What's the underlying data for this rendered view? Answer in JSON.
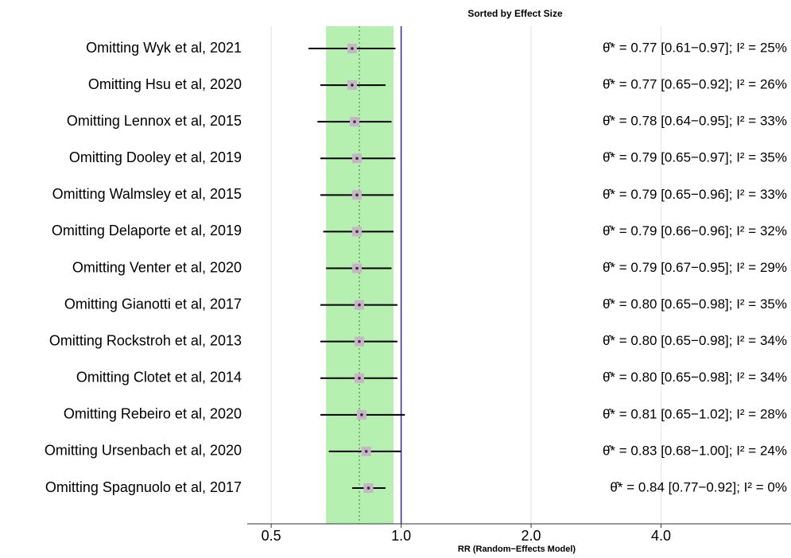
{
  "chart_data": {
    "type": "forest",
    "title": "Sorted by Effect Size",
    "xlabel": "RR (Random−Effects Model)",
    "categories": [
      "Omitting Wyk et al, 2021",
      "Omitting Hsu et al, 2020",
      "Omitting Lennox et al, 2015",
      "Omitting Dooley et al, 2019",
      "Omitting Walmsley et al, 2015",
      "Omitting Delaporte et al, 2019",
      "Omitting Venter et al, 2020",
      "Omitting Gianotti et al, 2017",
      "Omitting Rockstroh et al, 2013",
      "Omitting Clotet et al, 2014",
      "Omitting Rebeiro et al, 2020",
      "Omitting Ursenbach et al, 2020",
      "Omitting Spagnuolo et al, 2017"
    ],
    "values": [
      0.77,
      0.77,
      0.78,
      0.79,
      0.79,
      0.79,
      0.79,
      0.8,
      0.8,
      0.8,
      0.81,
      0.83,
      0.84
    ],
    "lower": [
      0.61,
      0.65,
      0.64,
      0.65,
      0.65,
      0.66,
      0.67,
      0.65,
      0.65,
      0.65,
      0.65,
      0.68,
      0.77
    ],
    "upper": [
      0.97,
      0.92,
      0.95,
      0.97,
      0.96,
      0.96,
      0.95,
      0.98,
      0.98,
      0.98,
      1.02,
      1.0,
      0.92
    ],
    "value_labels": [
      "θ̂* = 0.77 [0.61−0.97]; I² = 25%",
      "θ̂* = 0.77 [0.65−0.92]; I² = 26%",
      "θ̂* = 0.78 [0.64−0.95]; I² = 33%",
      "θ̂* = 0.79 [0.65−0.97]; I² = 35%",
      "θ̂* = 0.79 [0.65−0.96]; I² = 33%",
      "θ̂* = 0.79 [0.66−0.96]; I² = 32%",
      "θ̂* = 0.79 [0.67−0.95]; I² = 29%",
      "θ̂* = 0.80 [0.65−0.98]; I² = 35%",
      "θ̂* = 0.80 [0.65−0.98]; I² = 34%",
      "θ̂* = 0.80 [0.65−0.98]; I² = 34%",
      "θ̂* = 0.81 [0.65−1.02]; I² = 28%",
      "θ̂* = 0.83 [0.68−1.00]; I² = 24%",
      "θ̂* = 0.84 [0.77−0.92]; I² =  0%"
    ],
    "overall": {
      "estimate": 0.8,
      "lower": 0.67,
      "upper": 0.96
    },
    "reference": 1,
    "xlim": [
      0.44,
      8
    ],
    "log_x": true,
    "xticks": [
      0.5,
      {
        "value": 1,
        "label": "1.0"
      },
      {
        "value": 2,
        "label": "2.0"
      },
      {
        "value": 4,
        "label": "4.0"
      }
    ],
    "grid": true,
    "band_color": "#b5f0b0",
    "ref_color": "#2b2b9e",
    "ci_color": "#000000",
    "point_color": "#c9b3c9"
  }
}
